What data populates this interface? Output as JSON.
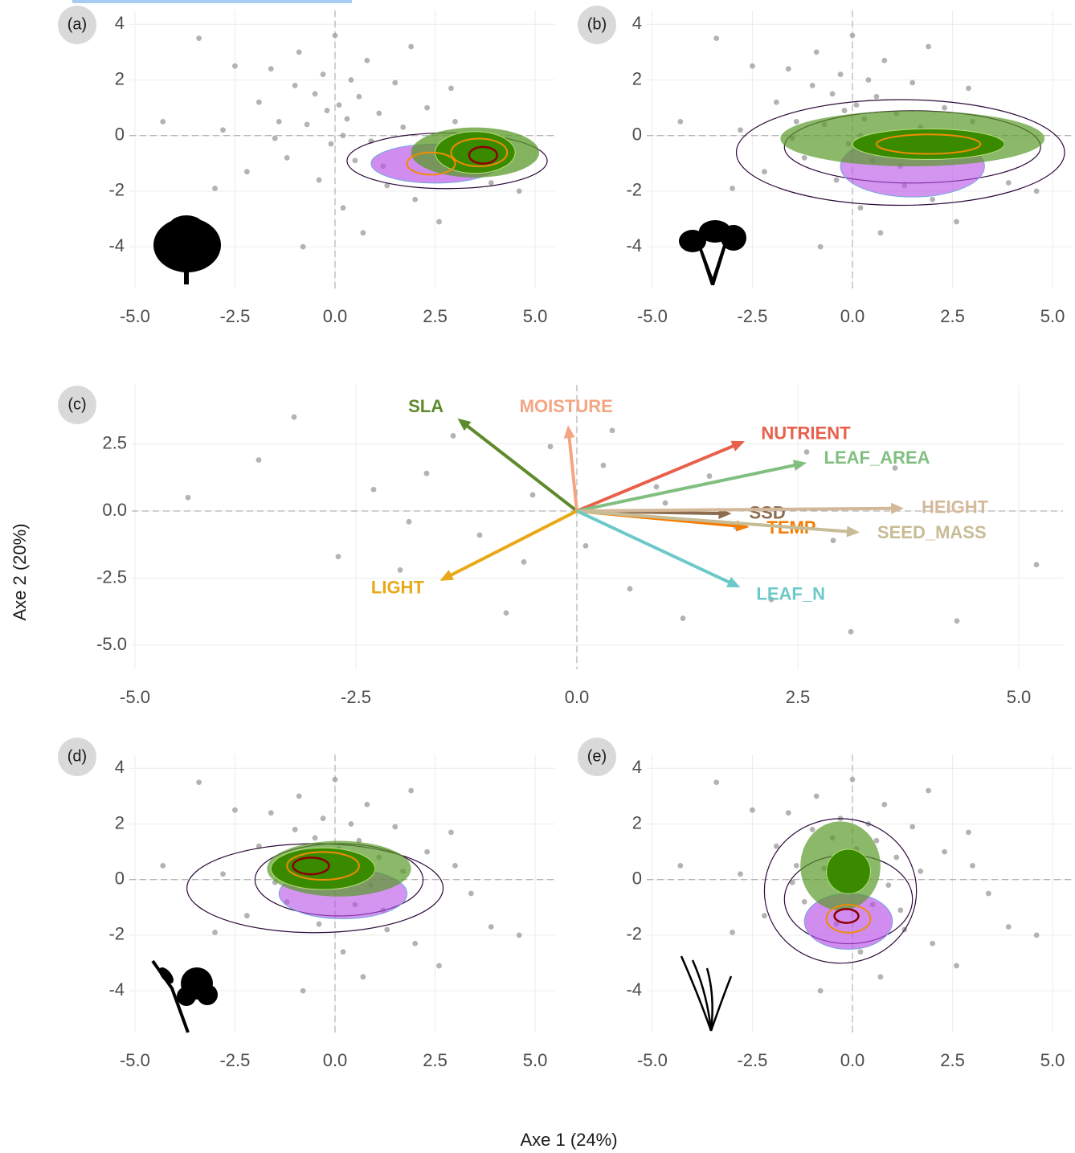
{
  "x_label": "Axe 1 (24%)",
  "y_label": "Axe 2 (20%)",
  "chart_data": [
    {
      "type": "scatter",
      "panel": "(a)",
      "xlim": [
        -5.5,
        5.5
      ],
      "ylim": [
        -5.5,
        4.5
      ],
      "xticks": [
        {
          "value": -5,
          "label": "-5.0"
        },
        {
          "value": -2.5,
          "label": "-2.5"
        },
        {
          "value": 0,
          "label": "0.0"
        },
        {
          "value": 2.5,
          "label": "2.5"
        },
        {
          "value": 5,
          "label": "5.0"
        }
      ],
      "yticks": [
        -4,
        -2,
        0,
        2,
        4
      ],
      "series": [
        {
          "color": "#a6a6a6",
          "x": [
            -3.4,
            -2.8,
            -2.2,
            -1.9,
            -1.6,
            -1.4,
            -1.2,
            -1.0,
            -0.9,
            -0.7,
            -0.5,
            -0.4,
            -0.3,
            -0.2,
            -0.1,
            0,
            0.1,
            0.2,
            0.3,
            0.4,
            0.5,
            0.6,
            0.8,
            0.9,
            1.1,
            1.3,
            1.5,
            1.7,
            2.0,
            2.3,
            2.6,
            3.0,
            3.4,
            3.9,
            4.6,
            -4.3,
            -3.0,
            -0.8,
            0.7,
            1.9,
            -1.5,
            0.2,
            1.2,
            -2.5,
            2.9
          ],
          "y": [
            3.5,
            0.2,
            -1.3,
            1.2,
            2.4,
            0.5,
            -0.8,
            1.8,
            3.0,
            0.4,
            1.5,
            -1.6,
            2.2,
            0.9,
            -0.3,
            3.6,
            1.1,
            -2.6,
            0.6,
            2.0,
            -0.9,
            1.4,
            2.7,
            -0.2,
            0.8,
            -1.8,
            1.9,
            0.3,
            -2.3,
            1.0,
            -3.1,
            0.5,
            -0.5,
            -1.7,
            -2.0,
            0.5,
            -1.9,
            -4.0,
            -3.5,
            3.2,
            -0.1,
            0.0,
            -1.1,
            2.5,
            1.7
          ]
        }
      ]
    },
    {
      "type": "scatter",
      "panel": "(b)",
      "xlim": [
        -5.5,
        5.5
      ],
      "ylim": [
        -5.5,
        4.5
      ],
      "xticks": [
        {
          "value": -5,
          "label": "-5.0"
        },
        {
          "value": -2.5,
          "label": "-2.5"
        },
        {
          "value": 0,
          "label": "0.0"
        },
        {
          "value": 2.5,
          "label": "2.5"
        },
        {
          "value": 5,
          "label": "5.0"
        }
      ],
      "yticks": [
        -4,
        -2,
        0,
        2,
        4
      ],
      "series": [
        {
          "color": "#a6a6a6",
          "x": [
            -3.4,
            -2.8,
            -2.2,
            -1.9,
            -1.6,
            -1.4,
            -1.2,
            -1.0,
            -0.9,
            -0.7,
            -0.5,
            -0.4,
            -0.3,
            -0.2,
            -0.1,
            0,
            0.1,
            0.2,
            0.3,
            0.4,
            0.5,
            0.6,
            0.8,
            0.9,
            1.1,
            1.3,
            1.5,
            1.7,
            2.0,
            2.3,
            2.6,
            3.0,
            3.4,
            3.9,
            4.6,
            -4.3,
            -3.0,
            -0.8,
            0.7,
            1.9,
            -1.5,
            0.2,
            1.2,
            -2.5,
            2.9
          ],
          "y": [
            3.5,
            0.2,
            -1.3,
            1.2,
            2.4,
            0.5,
            -0.8,
            1.8,
            3.0,
            0.4,
            1.5,
            -1.6,
            2.2,
            0.9,
            -0.3,
            3.6,
            1.1,
            -2.6,
            0.6,
            2.0,
            -0.9,
            1.4,
            2.7,
            -0.2,
            0.8,
            -1.8,
            1.9,
            0.3,
            -2.3,
            1.0,
            -3.1,
            0.5,
            -0.5,
            -1.7,
            -2.0,
            0.5,
            -1.9,
            -4.0,
            -3.5,
            3.2,
            -0.1,
            0.0,
            -1.1,
            2.5,
            1.7
          ]
        }
      ]
    },
    {
      "type": "biplot",
      "panel": "(c)",
      "xlim": [
        -5.2,
        5.5
      ],
      "ylim": [
        -5.9,
        4.7
      ],
      "xticks": [
        {
          "value": -5,
          "label": "-5.0"
        },
        {
          "value": -2.5,
          "label": "-2.5"
        },
        {
          "value": 0,
          "label": "0.0"
        },
        {
          "value": 2.5,
          "label": "2.5"
        },
        {
          "value": 5,
          "label": "5.0"
        }
      ],
      "yticks": [
        {
          "value": -5,
          "label": "-5.0"
        },
        {
          "value": -2.5,
          "label": "-2.5"
        },
        {
          "value": 0,
          "label": "0.0"
        },
        2.5
      ],
      "series": [
        {
          "color": "#a6a6a6",
          "x": [
            -4.4,
            -3.6,
            -3.2,
            -2.7,
            -2.3,
            -2.0,
            -1.7,
            -1.4,
            -1.1,
            -0.8,
            -0.5,
            -0.3,
            0.1,
            0.3,
            0.6,
            0.9,
            1.2,
            1.5,
            1.8,
            2.2,
            2.6,
            3.1,
            3.6,
            4.3,
            5.2,
            -1.9,
            -0.6,
            0.4,
            1.0,
            2.9
          ],
          "y": [
            0.5,
            1.9,
            3.5,
            -1.7,
            0.8,
            -2.2,
            1.4,
            2.8,
            -0.9,
            -3.8,
            0.6,
            2.4,
            -1.3,
            1.7,
            -2.9,
            0.9,
            -4.0,
            1.3,
            -0.6,
            -3.3,
            2.2,
            -4.5,
            1.6,
            -4.1,
            -2.0,
            -0.4,
            -1.9,
            3.0,
            0.3,
            -1.1
          ]
        }
      ],
      "arrows": [
        {
          "name": "SLA",
          "color": "#5e8a2c",
          "x": -1.35,
          "y": 3.45
        },
        {
          "name": "MOISTURE",
          "color": "#f4a582",
          "x": -0.1,
          "y": 3.2
        },
        {
          "name": "NUTRIENT",
          "color": "#e8604c",
          "x": 1.9,
          "y": 2.6
        },
        {
          "name": "LEAF_AREA",
          "color": "#80bf80",
          "x": 2.6,
          "y": 1.8
        },
        {
          "name": "SSD",
          "color": "#8c6d4f",
          "x": 1.75,
          "y": -0.1
        },
        {
          "name": "HEIGHT",
          "color": "#d4b89a",
          "x": 3.7,
          "y": 0.1
        },
        {
          "name": "TEMP",
          "color": "#f57c00",
          "x": 1.95,
          "y": -0.6
        },
        {
          "name": "SEED_MASS",
          "color": "#c8bc96",
          "x": 3.2,
          "y": -0.8
        },
        {
          "name": "LEAF_N",
          "color": "#6cc9c9",
          "x": 1.85,
          "y": -2.85
        },
        {
          "name": "LIGHT",
          "color": "#e8a817",
          "x": -1.55,
          "y": -2.6
        }
      ]
    },
    {
      "type": "scatter",
      "panel": "(d)",
      "xlim": [
        -5.5,
        5.5
      ],
      "ylim": [
        -5.5,
        4.5
      ],
      "xticks": [
        {
          "value": -5,
          "label": "-5.0"
        },
        {
          "value": -2.5,
          "label": "-2.5"
        },
        {
          "value": 0,
          "label": "0.0"
        },
        {
          "value": 2.5,
          "label": "2.5"
        },
        {
          "value": 5,
          "label": "5.0"
        }
      ],
      "yticks": [
        -4,
        -2,
        0,
        2,
        4
      ],
      "series": [
        {
          "color": "#a6a6a6",
          "x": [
            -3.4,
            -2.8,
            -2.2,
            -1.9,
            -1.6,
            -1.4,
            -1.2,
            -1.0,
            -0.9,
            -0.7,
            -0.5,
            -0.4,
            -0.3,
            -0.2,
            -0.1,
            0,
            0.1,
            0.2,
            0.3,
            0.4,
            0.5,
            0.6,
            0.8,
            0.9,
            1.1,
            1.3,
            1.5,
            1.7,
            2.0,
            2.3,
            2.6,
            3.0,
            3.4,
            3.9,
            4.6,
            -4.3,
            -3.0,
            -0.8,
            0.7,
            1.9,
            -1.5,
            0.2,
            1.2,
            -2.5,
            2.9
          ],
          "y": [
            3.5,
            0.2,
            -1.3,
            1.2,
            2.4,
            0.5,
            -0.8,
            1.8,
            3.0,
            0.4,
            1.5,
            -1.6,
            2.2,
            0.9,
            -0.3,
            3.6,
            1.1,
            -2.6,
            0.6,
            2.0,
            -0.9,
            1.4,
            2.7,
            -0.2,
            0.8,
            -1.8,
            1.9,
            0.3,
            -2.3,
            1.0,
            -3.1,
            0.5,
            -0.5,
            -1.7,
            -2.0,
            0.5,
            -1.9,
            -4.0,
            -3.5,
            3.2,
            -0.1,
            0.0,
            -1.1,
            2.5,
            1.7
          ]
        }
      ]
    },
    {
      "type": "scatter",
      "panel": "(e)",
      "xlim": [
        -5.5,
        5.5
      ],
      "ylim": [
        -5.5,
        4.5
      ],
      "xticks": [
        {
          "value": -5,
          "label": "-5.0"
        },
        {
          "value": -2.5,
          "label": "-2.5"
        },
        {
          "value": 0,
          "label": "0.0"
        },
        {
          "value": 2.5,
          "label": "2.5"
        },
        {
          "value": 5,
          "label": "5.0"
        }
      ],
      "yticks": [
        -4,
        -2,
        0,
        2,
        4
      ],
      "series": [
        {
          "color": "#a6a6a6",
          "x": [
            -3.4,
            -2.8,
            -2.2,
            -1.9,
            -1.6,
            -1.4,
            -1.2,
            -1.0,
            -0.9,
            -0.7,
            -0.5,
            -0.4,
            -0.3,
            -0.2,
            -0.1,
            0,
            0.1,
            0.2,
            0.3,
            0.4,
            0.5,
            0.6,
            0.8,
            0.9,
            1.1,
            1.3,
            1.5,
            1.7,
            2.0,
            2.3,
            2.6,
            3.0,
            3.4,
            3.9,
            4.6,
            -4.3,
            -3.0,
            -0.8,
            0.7,
            1.9,
            -1.5,
            0.2,
            1.2,
            -2.5,
            2.9
          ],
          "y": [
            3.5,
            0.2,
            -1.3,
            1.2,
            2.4,
            0.5,
            -0.8,
            1.8,
            3.0,
            0.4,
            1.5,
            -1.6,
            2.2,
            0.9,
            -0.3,
            3.6,
            1.1,
            -2.6,
            0.6,
            2.0,
            -0.9,
            1.4,
            2.7,
            -0.2,
            0.8,
            -1.8,
            1.9,
            0.3,
            -2.3,
            1.0,
            -3.1,
            0.5,
            -0.5,
            -1.7,
            -2.0,
            0.5,
            -1.9,
            -4.0,
            -3.5,
            3.2,
            -0.1,
            0.0,
            -1.1,
            2.5,
            1.7
          ]
        }
      ]
    }
  ]
}
